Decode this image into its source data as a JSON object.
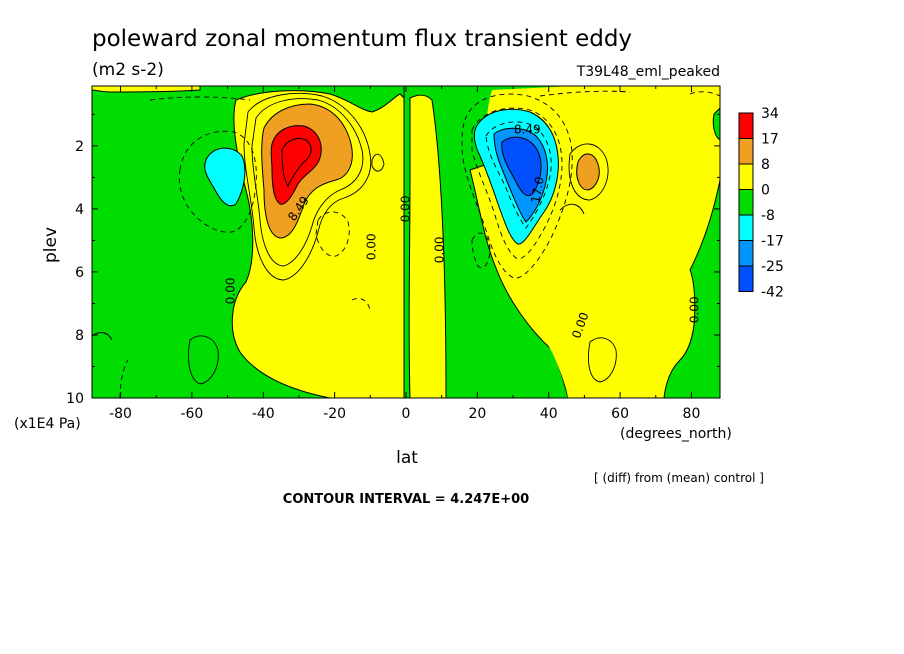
{
  "title": "poleward zonal momentum flux transient eddy",
  "units": "(m2 s-2)",
  "experiment": "T39L48_eml_peaked",
  "note": "[ (diff) from (mean) control ]",
  "contour_interval": "CONTOUR INTERVAL = 4.247E+00",
  "colors": {
    "red": "#ff0000",
    "orange": "#f0a020",
    "yellow": "#ffff00",
    "green": "#00dd00",
    "cyan": "#00ffff",
    "mid_blue": "#0096ff",
    "blue": "#0050ff"
  },
  "chart_data": {
    "type": "heatmap",
    "xlabel": "lat",
    "xunits": "(degrees_north)",
    "ylabel": "plev",
    "yunits": "(x1E4 Pa)",
    "xlim": [
      -88,
      88
    ],
    "ylim": [
      10,
      0.1
    ],
    "x_ticks": [
      "-80",
      "-60",
      "-40",
      "-20",
      "0",
      "20",
      "40",
      "60",
      "80"
    ],
    "x_tick_values": [
      -80,
      -60,
      -40,
      -20,
      0,
      20,
      40,
      60,
      80
    ],
    "y_ticks": [
      "2",
      "4",
      "6",
      "8",
      "10"
    ],
    "y_tick_values": [
      2,
      4,
      6,
      8,
      10
    ],
    "legend": {
      "labels": [
        "34",
        "17",
        "8",
        "0",
        "-8",
        "-17",
        "-25",
        "-42"
      ],
      "colors": [
        "#ff0000",
        "#f0a020",
        "#ffff00",
        "#00dd00",
        "#00ffff",
        "#0096ff",
        "#0050ff"
      ]
    },
    "contour_labels": [
      {
        "text": "8.49",
        "lat": -30,
        "p": 4.0,
        "angle": -55
      },
      {
        "text": "0.00",
        "lat": -49,
        "p": 6.6,
        "angle": -90
      },
      {
        "text": "0.00",
        "lat": -9.5,
        "p": 5.2,
        "angle": -90
      },
      {
        "text": "0.00",
        "lat": 0,
        "p": 4.0,
        "angle": -90
      },
      {
        "text": "0.00",
        "lat": 9.5,
        "p": 5.3,
        "angle": -90
      },
      {
        "text": "8.49",
        "lat": 34,
        "p": 1.5,
        "angle": 0
      },
      {
        "text": "17.0",
        "lat": 37,
        "p": 3.4,
        "angle": -80
      },
      {
        "text": "0.00",
        "lat": 49,
        "p": 7.7,
        "angle": -70
      },
      {
        "text": "0.00",
        "lat": 81,
        "p": 7.2,
        "angle": -90
      }
    ]
  }
}
